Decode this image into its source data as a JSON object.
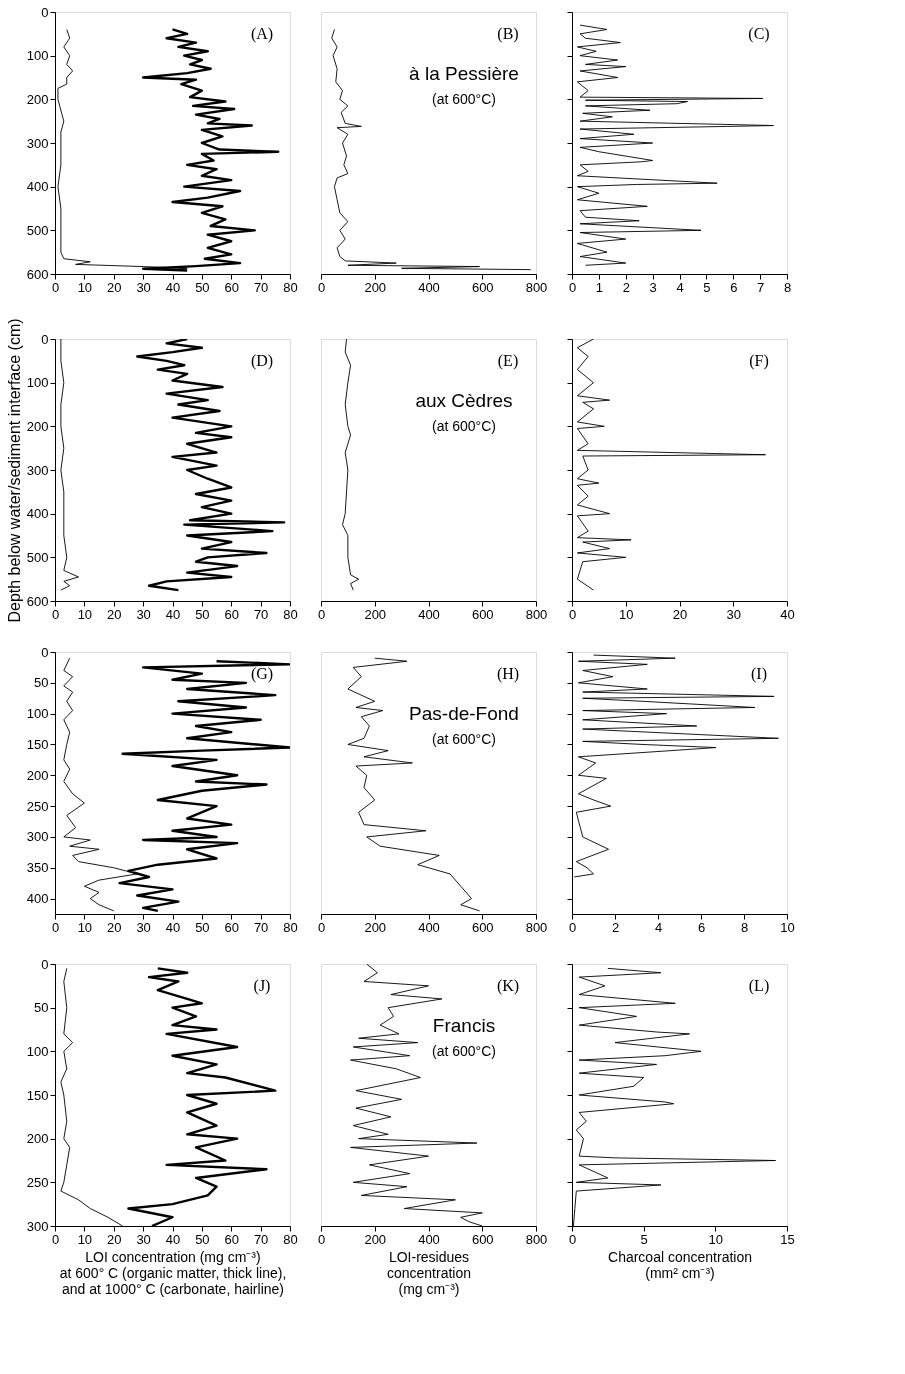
{
  "chart_data": [
    {
      "type": "line",
      "series": [
        {
          "color": "#000000",
          "x": [
            40,
            45,
            38,
            48,
            42,
            52,
            44,
            50,
            46,
            53,
            45,
            30,
            48,
            43,
            50,
            46,
            58,
            47,
            61,
            48,
            56,
            52,
            67,
            50,
            57,
            50,
            56,
            76,
            50,
            54,
            45,
            55,
            50,
            60,
            44,
            63,
            52,
            40,
            57,
            50,
            58,
            53,
            68,
            52,
            60,
            52,
            60,
            51,
            63,
            48,
            30,
            45
          ],
          "values": [
            40,
            50,
            60,
            70,
            80,
            90,
            100,
            110,
            120,
            130,
            140,
            150,
            155,
            165,
            180,
            195,
            205,
            215,
            222,
            235,
            245,
            255,
            260,
            270,
            285,
            300,
            315,
            320,
            325,
            340,
            350,
            360,
            375,
            385,
            400,
            410,
            425,
            435,
            445,
            460,
            475,
            490,
            500,
            510,
            525,
            540,
            555,
            565,
            575,
            582,
            588,
            592
          ]
        },
        {
          "color": "#000000",
          "x": [
            4,
            5,
            3,
            5,
            4,
            6,
            4,
            4,
            1,
            1,
            2,
            3,
            2,
            2,
            2,
            1,
            2,
            2,
            2,
            3,
            12,
            7,
            30,
            45,
            38
          ],
          "values": [
            40,
            60,
            80,
            100,
            120,
            135,
            150,
            165,
            175,
            200,
            225,
            250,
            275,
            300,
            350,
            400,
            450,
            500,
            550,
            565,
            572,
            578,
            583,
            587,
            590
          ]
        }
      ],
      "xlim": [
        0,
        80
      ],
      "xticks": [
        0,
        10,
        20,
        30,
        40,
        50,
        60,
        70,
        80
      ],
      "ylim": [
        600,
        0
      ],
      "yticks": [
        0,
        100,
        200,
        300,
        400,
        500,
        600
      ],
      "annotations": [
        "(A)"
      ]
    },
    {
      "type": "line",
      "series": [
        {
          "color": "#000000",
          "x": [
            50,
            40,
            60,
            45,
            60,
            55,
            80,
            70,
            100,
            75,
            90,
            150,
            60,
            100,
            80,
            95,
            85,
            100,
            60,
            50,
            60,
            70,
            100,
            70,
            90,
            60,
            70,
            90,
            280,
            100,
            590,
            300,
            780
          ],
          "values": [
            40,
            60,
            80,
            100,
            130,
            160,
            180,
            200,
            215,
            230,
            255,
            262,
            265,
            280,
            300,
            330,
            350,
            370,
            380,
            400,
            430,
            460,
            480,
            500,
            520,
            540,
            560,
            570,
            575,
            580,
            583,
            587,
            590
          ]
        }
      ],
      "xlim": [
        0,
        800
      ],
      "xticks": [
        0,
        200,
        400,
        600,
        800
      ],
      "ylim": [
        600,
        0
      ],
      "tick_labels": "x",
      "annotations": [
        "(B)",
        "à la Pessière",
        "(at 600°C)"
      ]
    },
    {
      "type": "line",
      "series": [
        {
          "color": "#000000",
          "x": [
            0.3,
            1.3,
            0.3,
            0.5,
            1.8,
            0.2,
            0.9,
            0.3,
            1.7,
            0.5,
            2.0,
            0.3,
            1.7,
            0.2,
            0.6,
            0.3,
            7.1,
            0.5,
            4.3,
            3.9,
            0.5,
            2.9,
            0.4,
            1.5,
            0.3,
            7.5,
            5.8,
            0.3,
            2.3,
            0.3,
            3.0,
            0.3,
            1.0,
            3.0,
            2.6,
            0.3,
            0.6,
            0.2,
            5.4,
            2.4,
            0.2,
            1.0,
            0.2,
            2.8,
            0.3,
            0.5,
            2.5,
            0.3,
            4.8,
            0.3,
            2.0,
            0.2,
            1.3,
            0.3,
            2.0,
            0.5
          ],
          "values": [
            30,
            40,
            50,
            60,
            70,
            80,
            90,
            100,
            110,
            120,
            125,
            135,
            150,
            160,
            180,
            195,
            198,
            202,
            205,
            210,
            215,
            225,
            232,
            240,
            250,
            260,
            262,
            268,
            280,
            290,
            300,
            310,
            320,
            340,
            343,
            350,
            365,
            375,
            392,
            395,
            400,
            415,
            430,
            445,
            455,
            470,
            478,
            485,
            500,
            505,
            520,
            530,
            550,
            560,
            575,
            580
          ]
        }
      ],
      "xlim": [
        0,
        8
      ],
      "xticks": [
        0,
        1,
        2,
        3,
        4,
        5,
        6,
        7,
        8
      ],
      "ylim": [
        600,
        0
      ],
      "yticks": [
        0,
        100,
        200,
        300,
        400,
        500,
        600
      ],
      "tick_labels": "x",
      "annotations": [
        "(C)"
      ]
    },
    {
      "type": "line",
      "series": [
        {
          "color": "#000000",
          "x": [
            45,
            38,
            50,
            40,
            28,
            38,
            44,
            35,
            45,
            40,
            57,
            38,
            52,
            42,
            56,
            40,
            60,
            48,
            60,
            45,
            55,
            40,
            55,
            45,
            52,
            60,
            48,
            60,
            50,
            60,
            46,
            78,
            44,
            74,
            45,
            60,
            50,
            72,
            52,
            48,
            62,
            45,
            60,
            38,
            32,
            42
          ],
          "values": [
            0,
            10,
            20,
            30,
            40,
            50,
            60,
            70,
            80,
            95,
            110,
            125,
            140,
            150,
            165,
            180,
            200,
            215,
            225,
            240,
            260,
            270,
            290,
            300,
            320,
            340,
            355,
            370,
            385,
            400,
            415,
            420,
            425,
            440,
            450,
            465,
            480,
            490,
            500,
            510,
            520,
            535,
            545,
            555,
            565,
            575
          ]
        },
        {
          "color": "#000000",
          "x": [
            2,
            2,
            3,
            2,
            2,
            3,
            2,
            3,
            3,
            3,
            4,
            3,
            8,
            3,
            5,
            2
          ],
          "values": [
            0,
            50,
            100,
            150,
            200,
            250,
            300,
            350,
            400,
            450,
            500,
            530,
            545,
            555,
            565,
            575
          ]
        }
      ],
      "xlim": [
        0,
        80
      ],
      "xticks": [
        0,
        10,
        20,
        30,
        40,
        50,
        60,
        70,
        80
      ],
      "ylim": [
        600,
        0
      ],
      "yticks": [
        0,
        100,
        200,
        300,
        400,
        500,
        600
      ],
      "ylabel": "Depth below water/sediment interface (cm)",
      "annotations": [
        "(D)"
      ]
    },
    {
      "type": "line",
      "series": [
        {
          "color": "#000000",
          "x": [
            95,
            90,
            110,
            100,
            90,
            100,
            110,
            90,
            100,
            95,
            90,
            80,
            100,
            100,
            110,
            140,
            110,
            120
          ],
          "values": [
            0,
            30,
            60,
            100,
            150,
            200,
            220,
            260,
            300,
            350,
            400,
            425,
            450,
            500,
            540,
            550,
            560,
            575
          ]
        }
      ],
      "xlim": [
        0,
        800
      ],
      "xticks": [
        0,
        200,
        400,
        600,
        800
      ],
      "ylim": [
        600,
        0
      ],
      "tick_labels": "x",
      "annotations": [
        "(E)",
        "aux Cèdres",
        "(at 600°C)"
      ]
    },
    {
      "type": "line",
      "series": [
        {
          "color": "#000000",
          "x": [
            4,
            1,
            3,
            1,
            4,
            1,
            7,
            2,
            4,
            1,
            6,
            1,
            3,
            1,
            36,
            2,
            3,
            1,
            5,
            1,
            3,
            1,
            7,
            1,
            3,
            1,
            11,
            2,
            7,
            1,
            10,
            2,
            1,
            4
          ],
          "values": [
            0,
            20,
            40,
            70,
            100,
            130,
            140,
            145,
            160,
            190,
            200,
            205,
            240,
            255,
            265,
            268,
            300,
            320,
            330,
            335,
            360,
            380,
            400,
            405,
            440,
            455,
            460,
            465,
            480,
            490,
            500,
            510,
            550,
            575
          ]
        }
      ],
      "xlim": [
        0,
        40
      ],
      "xticks": [
        0,
        10,
        20,
        30,
        40
      ],
      "ylim": [
        600,
        0
      ],
      "yticks": [
        0,
        100,
        200,
        300,
        400,
        500,
        600
      ],
      "tick_labels": "x",
      "annotations": [
        "(F)"
      ]
    },
    {
      "type": "line",
      "series": [
        {
          "color": "#000000",
          "x": [
            55,
            80,
            30,
            50,
            40,
            65,
            45,
            75,
            42,
            65,
            40,
            70,
            48,
            60,
            45,
            80,
            50,
            23,
            55,
            40,
            62,
            48,
            72,
            50,
            35,
            55,
            45,
            60,
            40,
            55,
            30,
            62,
            45,
            55,
            35,
            25,
            32,
            22,
            40,
            28,
            42,
            30,
            35
          ],
          "values": [
            15,
            20,
            25,
            35,
            45,
            50,
            60,
            70,
            80,
            90,
            100,
            110,
            120,
            130,
            140,
            155,
            160,
            165,
            175,
            185,
            200,
            210,
            215,
            225,
            240,
            250,
            270,
            280,
            290,
            300,
            305,
            310,
            320,
            335,
            345,
            355,
            365,
            375,
            385,
            395,
            405,
            415,
            420
          ]
        },
        {
          "color": "#000000",
          "x": [
            5,
            3,
            6,
            3,
            6,
            4,
            6,
            3,
            5,
            4,
            3,
            5,
            3,
            6,
            10,
            4,
            7,
            3,
            12,
            5,
            15,
            6,
            8,
            20,
            28,
            15,
            10,
            15,
            12,
            15,
            20
          ],
          "values": [
            10,
            30,
            40,
            55,
            65,
            80,
            95,
            110,
            130,
            150,
            175,
            190,
            210,
            230,
            245,
            265,
            285,
            300,
            305,
            315,
            320,
            330,
            340,
            350,
            360,
            370,
            380,
            390,
            400,
            410,
            420
          ]
        }
      ],
      "xlim": [
        0,
        80
      ],
      "xticks": [
        0,
        10,
        20,
        30,
        40,
        50,
        60,
        70,
        80
      ],
      "ylim": [
        425,
        0
      ],
      "yticks": [
        0,
        50,
        100,
        150,
        200,
        250,
        300,
        350,
        400
      ],
      "annotations": [
        "(G)"
      ]
    },
    {
      "type": "line",
      "series": [
        {
          "color": "#000000",
          "x": [
            200,
            320,
            120,
            150,
            100,
            200,
            130,
            230,
            150,
            180,
            160,
            100,
            250,
            160,
            340,
            130,
            170,
            160,
            200,
            140,
            160,
            390,
            170,
            220,
            440,
            360,
            480,
            520,
            560,
            520,
            590
          ],
          "values": [
            10,
            15,
            25,
            40,
            60,
            80,
            90,
            95,
            105,
            120,
            140,
            150,
            160,
            170,
            180,
            185,
            200,
            220,
            240,
            260,
            280,
            290,
            300,
            315,
            330,
            345,
            360,
            380,
            400,
            410,
            420
          ]
        }
      ],
      "xlim": [
        0,
        800
      ],
      "xticks": [
        0,
        200,
        400,
        600,
        800
      ],
      "ylim": [
        425,
        0
      ],
      "tick_labels": "x",
      "annotations": [
        "(H)",
        "Pas-de-Fond",
        "(at 600°C)"
      ]
    },
    {
      "type": "line",
      "series": [
        {
          "color": "#000000",
          "x": [
            1.0,
            4.8,
            0.3,
            3.5,
            0.5,
            1.9,
            0.3,
            3.5,
            0.5,
            9.4,
            0.5,
            3.3,
            8.5,
            0.5,
            4.4,
            0.5,
            5.8,
            0.5,
            9.6,
            0.5,
            3.3,
            6.7,
            4.6,
            0.3,
            1.1,
            0.3,
            1.6,
            0.3,
            1.0,
            1.8,
            0.2,
            0.5,
            1.7,
            0.2,
            0.7,
            1.0,
            0.1
          ],
          "values": [
            5,
            10,
            15,
            20,
            30,
            40,
            50,
            60,
            65,
            72,
            75,
            80,
            90,
            95,
            100,
            110,
            120,
            125,
            140,
            145,
            150,
            155,
            160,
            170,
            180,
            200,
            205,
            230,
            240,
            250,
            260,
            300,
            320,
            340,
            350,
            360,
            365
          ]
        }
      ],
      "xlim": [
        0,
        10
      ],
      "xticks": [
        0,
        2,
        4,
        6,
        8,
        10
      ],
      "ylim": [
        425,
        0
      ],
      "yticks": [
        0,
        50,
        100,
        150,
        200,
        250,
        300,
        350,
        400
      ],
      "tick_labels": "x",
      "annotations": [
        "(I)"
      ]
    },
    {
      "type": "line",
      "series": [
        {
          "color": "#000000",
          "x": [
            35,
            45,
            32,
            42,
            35,
            45,
            50,
            40,
            48,
            40,
            55,
            38,
            62,
            40,
            55,
            45,
            58,
            75,
            45,
            55,
            45,
            55,
            45,
            62,
            48,
            58,
            38,
            72,
            48,
            55,
            52,
            40,
            25,
            40,
            33
          ],
          "values": [
            5,
            10,
            15,
            20,
            30,
            40,
            45,
            50,
            60,
            70,
            75,
            80,
            95,
            105,
            115,
            125,
            130,
            145,
            150,
            160,
            170,
            185,
            195,
            200,
            210,
            225,
            230,
            235,
            245,
            255,
            265,
            275,
            280,
            290,
            300
          ]
        },
        {
          "color": "#000000",
          "x": [
            4,
            3,
            4,
            3,
            6,
            3,
            4,
            2,
            3,
            4,
            3,
            5,
            4,
            3,
            2,
            8,
            12,
            18,
            23
          ],
          "values": [
            5,
            20,
            50,
            80,
            90,
            100,
            120,
            135,
            150,
            180,
            200,
            210,
            230,
            250,
            260,
            270,
            280,
            290,
            300
          ]
        }
      ],
      "xlim": [
        0,
        80
      ],
      "xticks": [
        0,
        10,
        20,
        30,
        40,
        50,
        60,
        70,
        80
      ],
      "ylim": [
        300,
        0
      ],
      "yticks": [
        0,
        50,
        100,
        150,
        200,
        250,
        300
      ],
      "xlabel": "LOI concentration (mg cm⁻³)\nat 600° C (organic matter, thick line),\nand at 1000° C (carbonate, hairline)",
      "annotations": [
        "(J)"
      ]
    },
    {
      "type": "line",
      "series": [
        {
          "color": "#000000",
          "x": [
            170,
            210,
            160,
            400,
            260,
            450,
            250,
            270,
            220,
            290,
            140,
            360,
            120,
            330,
            110,
            280,
            370,
            130,
            300,
            130,
            260,
            120,
            250,
            140,
            580,
            110,
            400,
            180,
            330,
            120,
            320,
            150,
            500,
            310,
            600,
            520,
            550,
            600
          ],
          "values": [
            0,
            10,
            20,
            25,
            35,
            40,
            50,
            60,
            70,
            80,
            85,
            90,
            95,
            105,
            110,
            120,
            130,
            145,
            155,
            165,
            175,
            185,
            195,
            200,
            205,
            210,
            220,
            230,
            240,
            250,
            255,
            265,
            270,
            280,
            285,
            290,
            295,
            300
          ]
        }
      ],
      "xlim": [
        0,
        800
      ],
      "xticks": [
        0,
        200,
        400,
        600,
        800
      ],
      "ylim": [
        300,
        0
      ],
      "tick_labels": "x",
      "xlabel": "LOI-residues\nconcentration\n(mg cm⁻³)",
      "annotations": [
        "(K)",
        "Francis",
        "(at 600°C)"
      ]
    },
    {
      "type": "line",
      "series": [
        {
          "color": "#000000",
          "x": [
            2.5,
            6.2,
            0.5,
            2.3,
            0.5,
            7.2,
            0.5,
            4.5,
            0.5,
            6.0,
            8.2,
            3.0,
            9.0,
            6.5,
            0.5,
            5.9,
            0.5,
            5.0,
            4.3,
            0.5,
            6.5,
            7.1,
            0.5,
            1.0,
            0.3,
            0.8,
            0.5,
            3.0,
            14.2,
            0.5,
            2.5,
            0.3,
            6.2,
            0.3,
            0.2,
            0.1
          ],
          "values": [
            5,
            10,
            15,
            25,
            35,
            45,
            50,
            60,
            70,
            78,
            80,
            90,
            100,
            105,
            110,
            115,
            125,
            130,
            140,
            150,
            158,
            160,
            170,
            180,
            190,
            200,
            220,
            222,
            225,
            230,
            245,
            250,
            253,
            260,
            280,
            300
          ]
        }
      ],
      "xlim": [
        0,
        15
      ],
      "xticks": [
        0,
        5,
        10,
        15
      ],
      "ylim": [
        300,
        0
      ],
      "yticks": [
        0,
        50,
        100,
        150,
        200,
        250,
        300
      ],
      "tick_labels": "x",
      "xlabel": "Charcoal concentration\n(mm² cm⁻³)",
      "annotations": [
        "(L)"
      ]
    }
  ]
}
